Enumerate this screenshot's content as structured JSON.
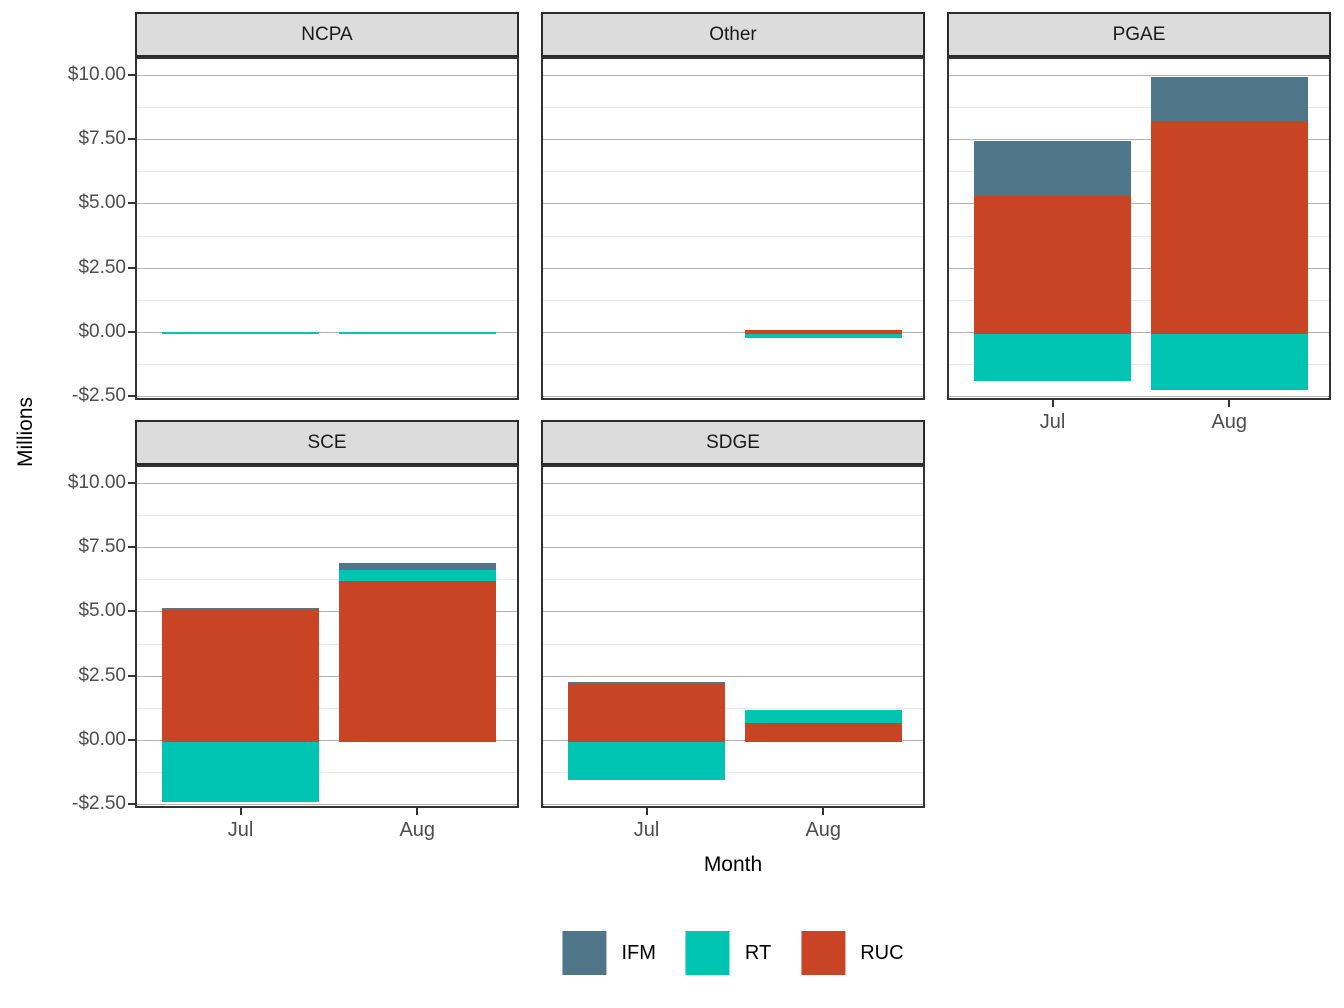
{
  "figure": {
    "y_axis_title": "Millions",
    "x_axis_title": "Month"
  },
  "chart_data": {
    "type": "bar",
    "stacked": true,
    "unit": "millions of dollars (USD)",
    "categories": [
      "Jul",
      "Aug"
    ],
    "series": [
      {
        "name": "IFM",
        "color": "#4E7588"
      },
      {
        "name": "RT",
        "color": "#00C4B2"
      },
      {
        "name": "RUC",
        "color": "#C94425"
      }
    ],
    "stack_order_bottom_to_top": [
      "RUC",
      "RT",
      "IFM"
    ],
    "y_ticks": [
      {
        "value": 10,
        "label": "$10.00"
      },
      {
        "value": 7.5,
        "label": "$7.50"
      },
      {
        "value": 5,
        "label": "$5.00"
      },
      {
        "value": 2.5,
        "label": "$2.50"
      },
      {
        "value": 0,
        "label": "$0.00"
      },
      {
        "value": -2.5,
        "label": "-$2.50"
      }
    ],
    "y_minor_ticks": [
      8.75,
      6.25,
      3.75,
      1.25,
      -1.25
    ],
    "ylim": [
      -2.65,
      10.7
    ],
    "grid": true,
    "legend_position": "bottom",
    "facets": [
      {
        "name": "NCPA",
        "row": 0,
        "col": 0,
        "show_x_axis": false,
        "values": {
          "Jul": {
            "IFM": 0,
            "RT": 0.05,
            "RUC": 0
          },
          "Aug": {
            "IFM": 0,
            "RT": 0.05,
            "RUC": 0
          }
        }
      },
      {
        "name": "Other",
        "row": 0,
        "col": 1,
        "show_x_axis": false,
        "values": {
          "Jul": {
            "IFM": 0,
            "RT": 0,
            "RUC": 0
          },
          "Aug": {
            "IFM": 0,
            "RT": -0.15,
            "RUC": 0.15
          }
        }
      },
      {
        "name": "PGAE",
        "row": 0,
        "col": 2,
        "show_x_axis": true,
        "values": {
          "Jul": {
            "IFM": 2.15,
            "RT": -1.85,
            "RUC": 5.35
          },
          "Aug": {
            "IFM": 1.7,
            "RT": -2.2,
            "RUC": 8.3
          }
        }
      },
      {
        "name": "SCE",
        "row": 1,
        "col": 0,
        "show_x_axis": true,
        "values": {
          "Jul": {
            "IFM": 0.06,
            "RT": -2.35,
            "RUC": 5.15
          },
          "Aug": {
            "IFM": 0.25,
            "RT": 0.45,
            "RUC": 6.25
          }
        }
      },
      {
        "name": "SDGE",
        "row": 1,
        "col": 1,
        "show_x_axis": true,
        "values": {
          "Jul": {
            "IFM": 0.06,
            "RT": -1.5,
            "RUC": 2.25
          },
          "Aug": {
            "IFM": 0,
            "RT": 0.48,
            "RUC": 0.75
          }
        }
      }
    ],
    "theme": {
      "strip_bg": "#DCDCDC",
      "strip_border": "#2B2B2B",
      "panel_border": "#333333",
      "major_grid": "#B3B3B3",
      "minor_grid": "#E9E9E9",
      "tick_text": "#4D4D4D",
      "axis_title_text": "#000000",
      "background": "#FFFFFF"
    }
  }
}
